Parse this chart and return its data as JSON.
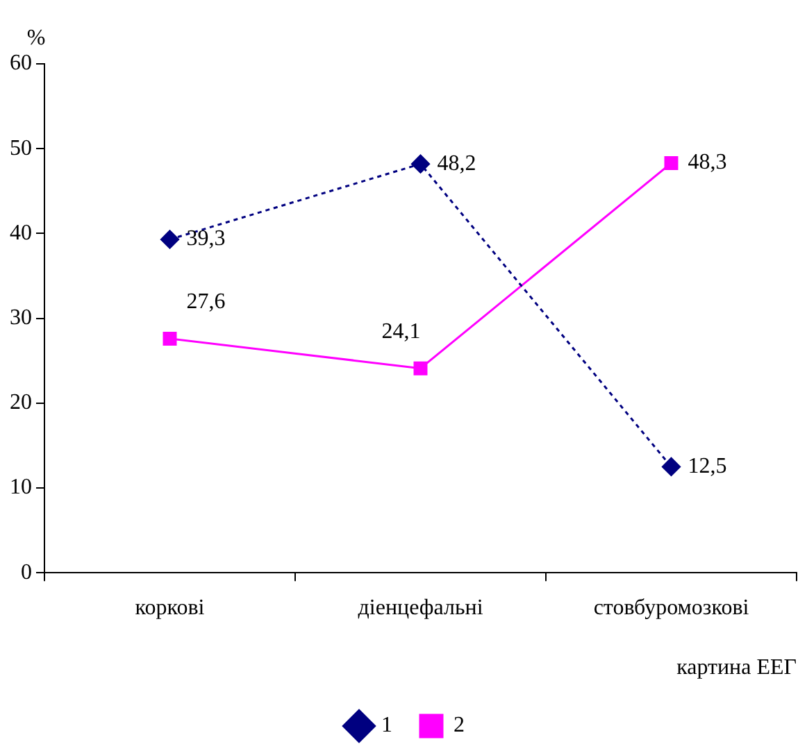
{
  "chart_data": {
    "type": "line",
    "xlabel": "картина ЕЕГ",
    "ylabel": "%",
    "categories": [
      "коркові",
      "діенцефальні",
      "стовбуромозкові"
    ],
    "series": [
      {
        "name": "1",
        "color": "#000080",
        "values": [
          39.3,
          48.2,
          12.5
        ],
        "value_labels": [
          "39,3",
          "48,2",
          "12,5"
        ],
        "marker": "diamond",
        "line_style": "dotted"
      },
      {
        "name": "2",
        "color": "#ff00ff",
        "values": [
          27.6,
          24.1,
          48.3
        ],
        "value_labels": [
          "27,6",
          "24,1",
          "48,3"
        ],
        "marker": "square",
        "line_style": "solid"
      }
    ],
    "ylim": [
      0,
      60
    ],
    "yticks": [
      0,
      10,
      20,
      30,
      40,
      50,
      60
    ],
    "grid": false,
    "legend": "bottom"
  }
}
